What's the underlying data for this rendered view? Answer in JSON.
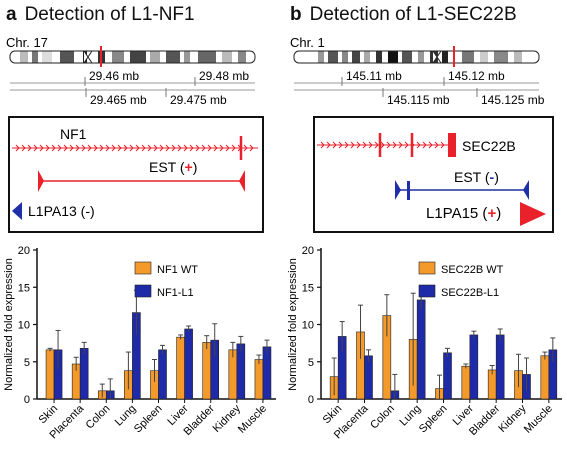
{
  "panels": [
    {
      "letter": "a",
      "title": "Detection of L1-NF1",
      "chromosome": "Chr. 17",
      "scale_top": [
        "29.46 mb",
        "29.48 mb"
      ],
      "scale_bottom": [
        "29.465 mb",
        "29.475 mb"
      ],
      "gene_label": "NF1",
      "est_label": "EST (",
      "est_sign": "+",
      "l1_label": "L1PA13 (-)",
      "l1_direction": "left",
      "colors": {
        "gene": "#e8212a",
        "est": "#e8212a",
        "l1": "#1f2fa8"
      }
    },
    {
      "letter": "b",
      "title": "Detection of L1-SEC22B",
      "chromosome": "Chr. 1",
      "scale_top": [
        "145.11 mb",
        "145.12 mb"
      ],
      "scale_bottom": [
        "145.115 mb",
        "145.125 mb"
      ],
      "gene_label": "SEC22B",
      "est_label": "EST (",
      "est_sign": "-",
      "l1_label": "L1PA15 (",
      "l1_sign": "+",
      "l1_direction": "right",
      "colors": {
        "gene": "#e8212a",
        "est": "#1f2fa8",
        "l1": "#e8212a"
      }
    }
  ],
  "chart_data": [
    {
      "type": "bar",
      "ylabel": "Normalized fold expression",
      "ylim": [
        0,
        20
      ],
      "yticks": [
        0,
        5,
        10,
        15,
        20
      ],
      "categories": [
        "Skin",
        "Placenta",
        "Colon",
        "Lung",
        "Spleen",
        "Liver",
        "Bladder",
        "Kidney",
        "Muscle"
      ],
      "series": [
        {
          "name": "NF1 WT",
          "color": "#f39a2b",
          "values": [
            6.6,
            4.7,
            1.1,
            3.8,
            3.8,
            8.3,
            7.6,
            6.6,
            5.3
          ],
          "errors": [
            0.2,
            0.9,
            0.9,
            2.5,
            1.5,
            0.3,
            0.9,
            1.0,
            0.6
          ]
        },
        {
          "name": "NF1-L1",
          "color": "#1f2aa8",
          "values": [
            6.6,
            6.8,
            1.1,
            11.6,
            6.6,
            9.4,
            7.9,
            7.4,
            7.0
          ],
          "errors": [
            2.6,
            0.8,
            1.6,
            3.0,
            0.6,
            0.4,
            2.2,
            1.0,
            0.9
          ]
        }
      ]
    },
    {
      "type": "bar",
      "ylabel": "Normalized fold expression",
      "ylim": [
        0,
        20
      ],
      "yticks": [
        0,
        5,
        10,
        15,
        20
      ],
      "categories": [
        "Skin",
        "Placenta",
        "Colon",
        "Lung",
        "Spleen",
        "Liver",
        "Bladder",
        "Kidney",
        "Muscle"
      ],
      "series": [
        {
          "name": "SEC22B WT",
          "color": "#f39a2b",
          "values": [
            3.0,
            9.0,
            11.2,
            8.0,
            1.4,
            4.4,
            3.9,
            3.8,
            5.8
          ],
          "errors": [
            2.5,
            3.6,
            2.8,
            6.2,
            1.8,
            0.3,
            0.6,
            2.2,
            0.5
          ]
        },
        {
          "name": "SEC22B-L1",
          "color": "#1f2aa8",
          "values": [
            8.4,
            5.8,
            1.1,
            13.3,
            6.2,
            8.6,
            8.6,
            3.3,
            6.6
          ],
          "errors": [
            2.0,
            0.8,
            2.2,
            1.2,
            0.6,
            0.5,
            0.8,
            2.2,
            1.6
          ]
        }
      ]
    }
  ]
}
